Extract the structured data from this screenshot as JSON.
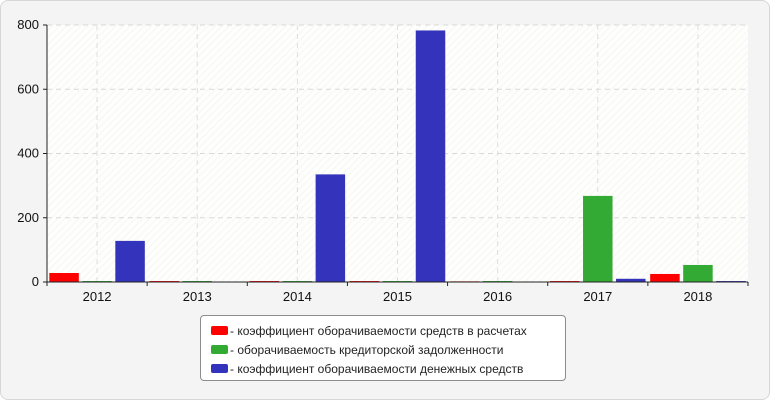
{
  "chart_data": {
    "type": "bar",
    "categories": [
      "2012",
      "2013",
      "2014",
      "2015",
      "2016",
      "2017",
      "2018"
    ],
    "series": [
      {
        "name": "- коэффициент оборачиваемости средств в расчетах",
        "color": "#ff0000",
        "values": [
          28,
          3,
          3,
          3,
          2,
          3,
          25
        ]
      },
      {
        "name": "- оборачиваемость кредиторской задолженности",
        "color": "#33aa33",
        "values": [
          3,
          3,
          3,
          3,
          3,
          268,
          53
        ]
      },
      {
        "name": "- коэффициент оборачиваемости денежных средств",
        "color": "#3333bb",
        "values": [
          128,
          null,
          335,
          783,
          null,
          10,
          3
        ]
      }
    ],
    "yticks": [
      0,
      200,
      400,
      600,
      800
    ],
    "ylim": [
      0,
      800
    ],
    "grid": true,
    "legend_position": "bottom-center"
  }
}
